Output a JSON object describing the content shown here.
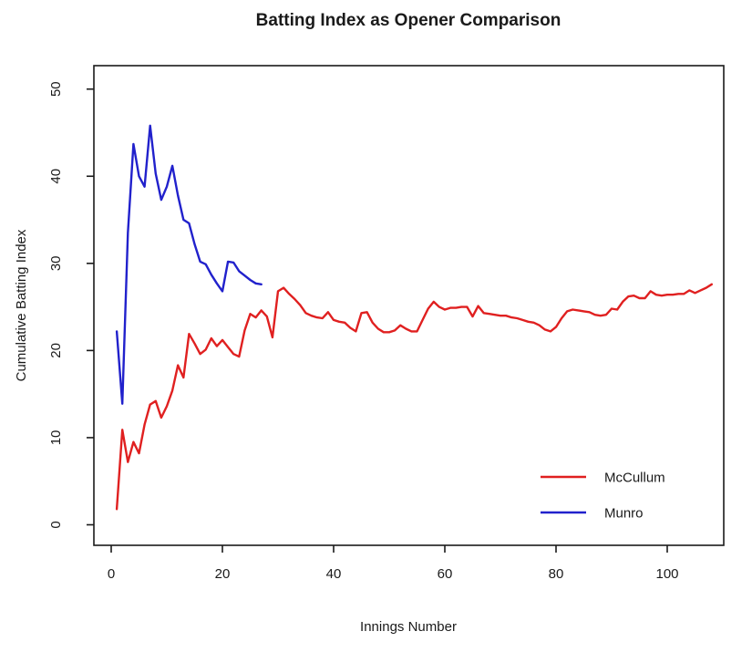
{
  "chart_data": {
    "type": "line",
    "title": "Batting Index as Opener Comparison",
    "xlabel": "Innings Number",
    "ylabel": "Cumulative Batting Index",
    "x_ticks": [
      0,
      20,
      40,
      60,
      80,
      100
    ],
    "y_ticks": [
      0,
      10,
      20,
      30,
      40,
      50
    ],
    "xlim": [
      -3,
      111
    ],
    "ylim": [
      -2,
      52
    ],
    "grid": false,
    "legend_position": "bottom-right",
    "axis_color": "#1a1a1a",
    "background_color": "#ffffff",
    "series": [
      {
        "name": "McCullum",
        "color": "#e02020",
        "x_start": 1,
        "values": [
          1.8,
          10.9,
          7.2,
          9.5,
          8.2,
          11.5,
          13.8,
          14.2,
          12.3,
          13.6,
          15.4,
          18.3,
          16.9,
          21.9,
          20.8,
          19.6,
          20.1,
          21.4,
          20.5,
          21.2,
          20.4,
          19.6,
          19.3,
          22.3,
          24.2,
          23.8,
          24.6,
          23.9,
          21.5,
          26.8,
          27.2,
          26.5,
          25.9,
          25.2,
          24.3,
          24.0,
          23.8,
          23.7,
          24.4,
          23.5,
          23.3,
          23.2,
          22.6,
          22.2,
          24.3,
          24.4,
          23.2,
          22.5,
          22.1,
          22.1,
          22.3,
          22.9,
          22.5,
          22.2,
          22.2,
          23.5,
          24.8,
          25.6,
          25.0,
          24.7,
          24.9,
          24.9,
          25.0,
          25.0,
          23.9,
          25.1,
          24.3,
          24.2,
          24.1,
          24.0,
          24.0,
          23.8,
          23.7,
          23.5,
          23.3,
          23.2,
          22.9,
          22.4,
          22.2,
          22.7,
          23.7,
          24.5,
          24.7,
          24.6,
          24.5,
          24.4,
          24.1,
          24.0,
          24.1,
          24.8,
          24.7,
          25.6,
          26.2,
          26.3,
          26.0,
          26.0,
          26.8,
          26.4,
          26.3,
          26.4,
          26.4,
          26.5,
          26.5,
          26.9,
          26.6,
          26.9,
          27.2,
          27.6
        ]
      },
      {
        "name": "Munro",
        "color": "#2121cc",
        "x_start": 1,
        "values": [
          22.2,
          13.9,
          33.5,
          43.7,
          40.0,
          38.8,
          45.8,
          40.3,
          37.3,
          38.8,
          41.2,
          37.8,
          35.0,
          34.6,
          32.2,
          30.2,
          29.9,
          28.7,
          27.7,
          26.8,
          30.2,
          30.1,
          29.1,
          28.6,
          28.1,
          27.7,
          27.6
        ]
      }
    ]
  }
}
